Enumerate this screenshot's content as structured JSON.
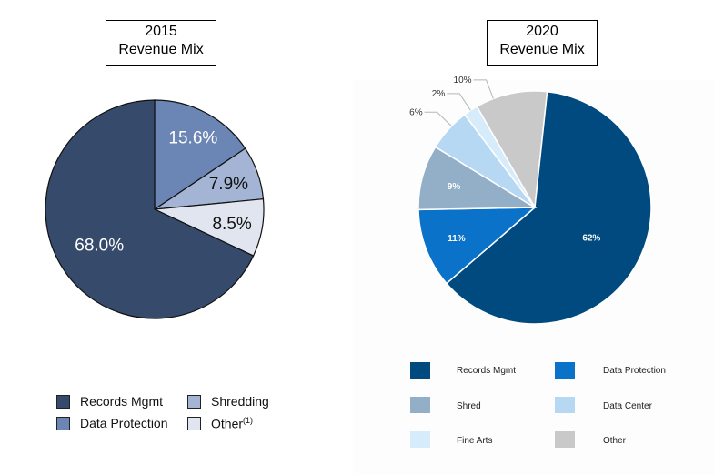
{
  "chart_data": [
    {
      "type": "pie",
      "title": "2015 Revenue Mix",
      "title_lines": [
        "2015",
        "Revenue Mix"
      ],
      "slices": [
        {
          "name": "Records Mgmt",
          "value": 68.0,
          "label": "68.0%",
          "color": "#364a6b"
        },
        {
          "name": "Data Protection",
          "value": 15.6,
          "label": "15.6%",
          "color": "#6b86b4"
        },
        {
          "name": "Shredding",
          "value": 7.9,
          "label": "7.9%",
          "color": "#a3b4d4"
        },
        {
          "name": "Other",
          "value": 8.5,
          "label": "8.5%",
          "color": "#e0e5f0"
        }
      ],
      "legend": [
        {
          "label": "Records Mgmt",
          "color": "#364a6b"
        },
        {
          "label": "Shredding",
          "color": "#a3b4d4"
        },
        {
          "label": "Data Protection",
          "color": "#6b86b4"
        },
        {
          "label": "Other",
          "footnote": "(1)",
          "color": "#e0e5f0"
        }
      ]
    },
    {
      "type": "pie",
      "title": "2020 Revenue Mix",
      "title_lines": [
        "2020",
        "Revenue Mix"
      ],
      "slices": [
        {
          "name": "Records Mgmt",
          "value": 62,
          "label": "62%",
          "color": "#004a80"
        },
        {
          "name": "Data Protection",
          "value": 11,
          "label": "11%",
          "color": "#0a72c9"
        },
        {
          "name": "Shred",
          "value": 9,
          "label": "9%",
          "color": "#92afc7"
        },
        {
          "name": "Data Center",
          "value": 6,
          "label": "6%",
          "color": "#b6d8f2"
        },
        {
          "name": "Fine Arts",
          "value": 2,
          "label": "2%",
          "color": "#d6ecfb"
        },
        {
          "name": "Other",
          "value": 10,
          "label": "10%",
          "color": "#c9c9c9"
        }
      ],
      "legend": [
        {
          "label": "Records Mgmt",
          "color": "#004a80"
        },
        {
          "label": "Data Protection",
          "color": "#0a72c9"
        },
        {
          "label": "Shred",
          "color": "#92afc7"
        },
        {
          "label": "Data Center",
          "color": "#b6d8f2"
        },
        {
          "label": "Fine Arts",
          "color": "#d6ecfb"
        },
        {
          "label": "Other",
          "color": "#c9c9c9"
        }
      ]
    }
  ]
}
